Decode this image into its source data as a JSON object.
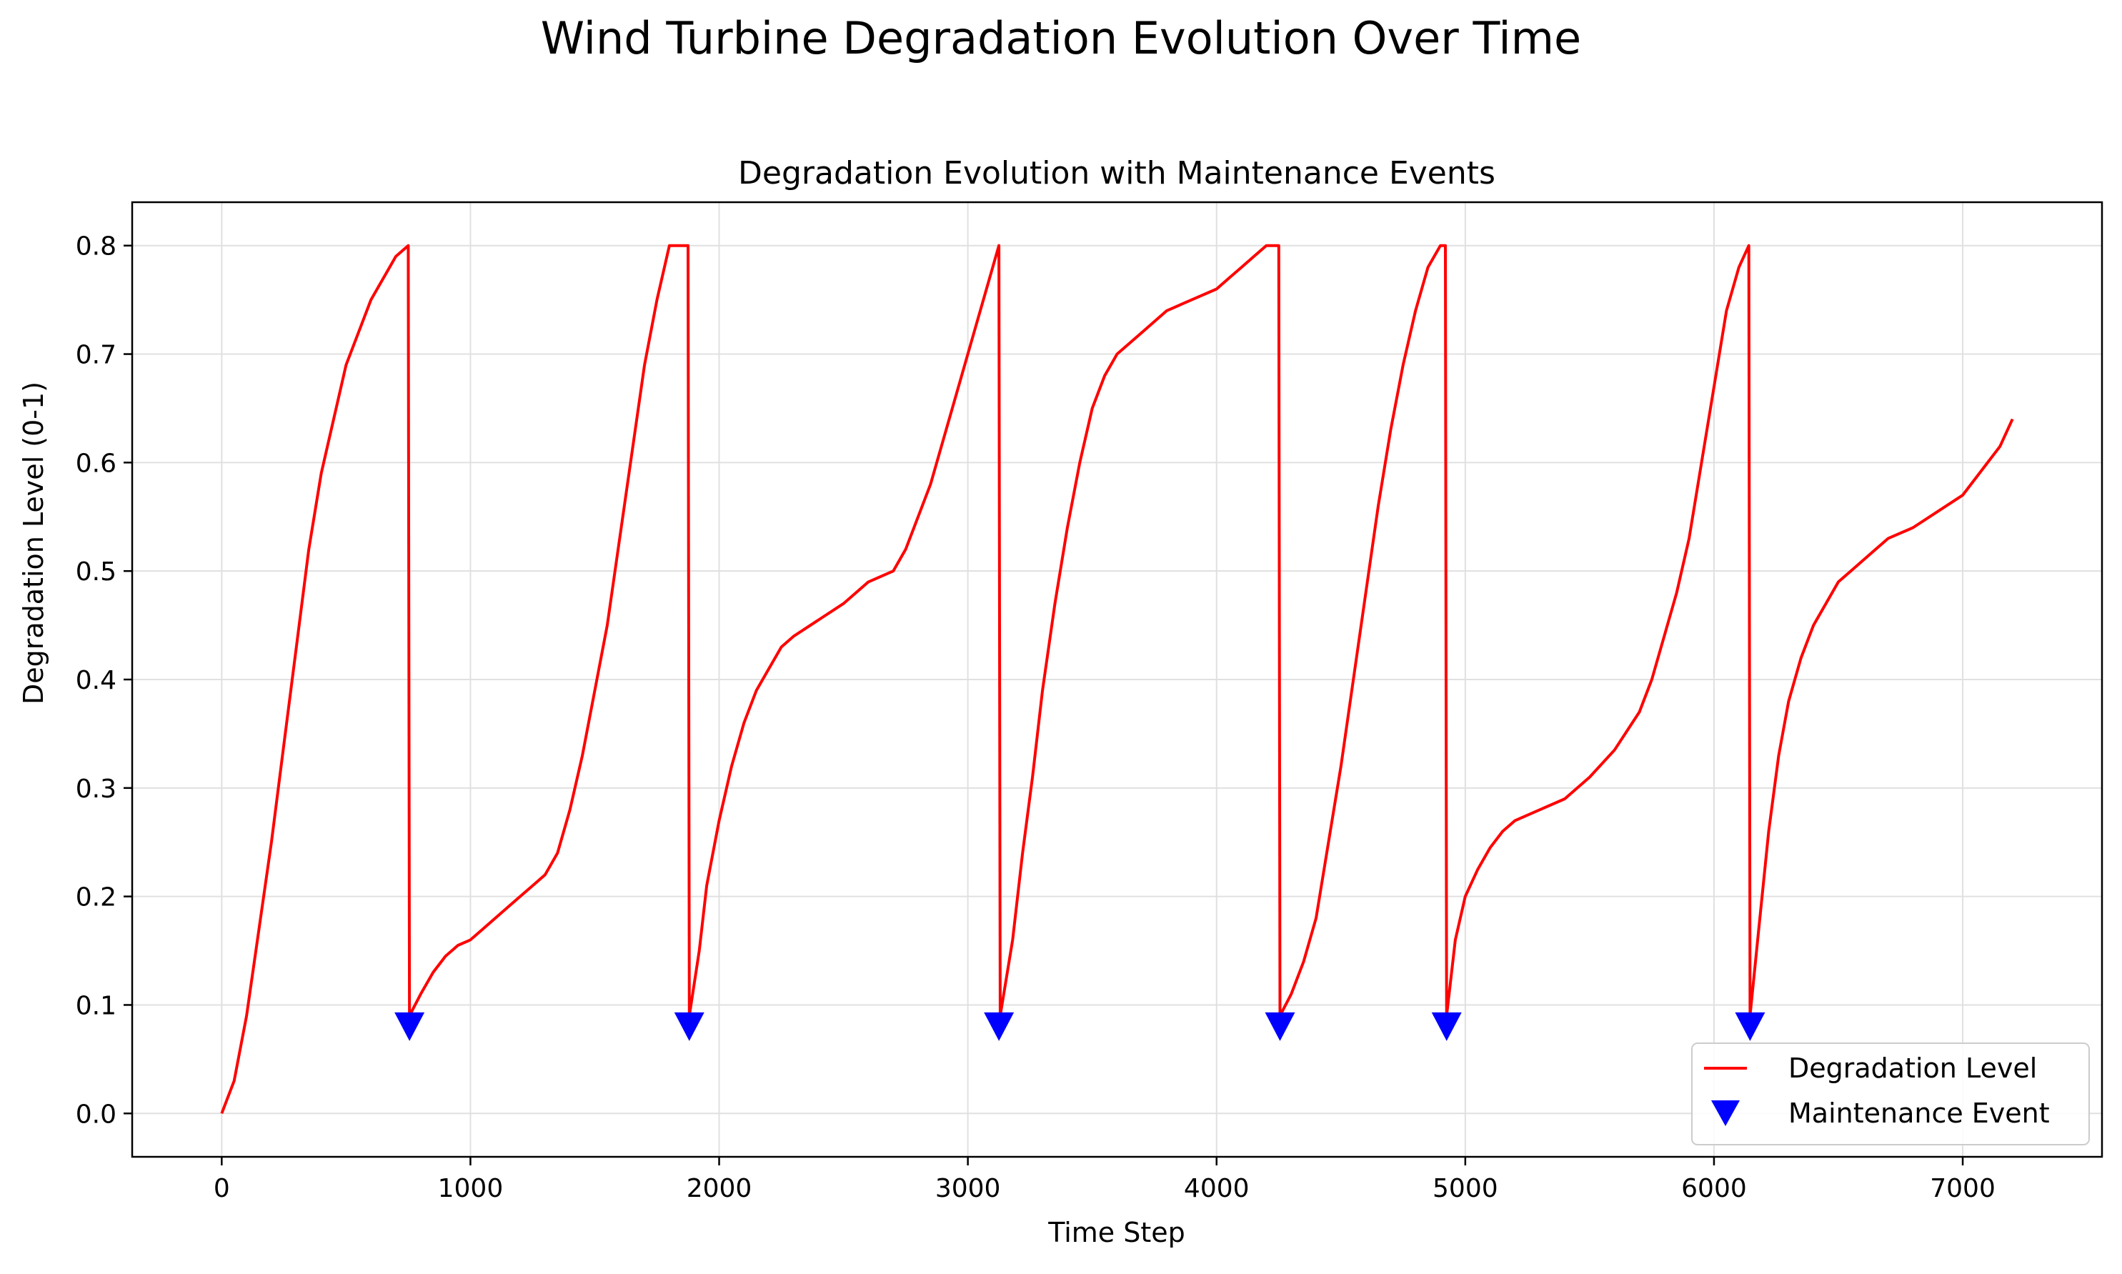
{
  "figure": {
    "suptitle": "Wind Turbine Degradation Evolution Over Time"
  },
  "chart_data": {
    "type": "line",
    "title": "Degradation Evolution with Maintenance Events",
    "xlabel": "Time Step",
    "ylabel": "Degradation Level (0-1)",
    "xlim": [
      -360,
      7560
    ],
    "ylim": [
      -0.04,
      0.84
    ],
    "xticks": [
      0,
      1000,
      2000,
      3000,
      4000,
      5000,
      6000,
      7000
    ],
    "xtick_labels": [
      "0",
      "1000",
      "2000",
      "3000",
      "4000",
      "5000",
      "6000",
      "7000"
    ],
    "yticks": [
      0.0,
      0.1,
      0.2,
      0.3,
      0.4,
      0.5,
      0.6,
      0.7,
      0.8
    ],
    "ytick_labels": [
      "0.0",
      "0.1",
      "0.2",
      "0.3",
      "0.4",
      "0.5",
      "0.6",
      "0.7",
      "0.8"
    ],
    "grid": true,
    "legend_position": "lower-right",
    "colors": {
      "degradation": "#ff0000",
      "maintenance": "#0000ff",
      "grid": "#e0e0e0"
    },
    "series": [
      {
        "name": "Degradation Level",
        "kind": "line",
        "x": [
          0,
          50,
          100,
          150,
          200,
          250,
          300,
          350,
          400,
          450,
          500,
          550,
          600,
          650,
          700,
          750,
          755,
          800,
          850,
          900,
          950,
          1000,
          1050,
          1100,
          1150,
          1200,
          1250,
          1300,
          1350,
          1400,
          1450,
          1500,
          1550,
          1600,
          1650,
          1700,
          1750,
          1800,
          1850,
          1875,
          1880,
          1920,
          1950,
          2000,
          2050,
          2100,
          2150,
          2200,
          2250,
          2300,
          2400,
          2500,
          2600,
          2700,
          2750,
          2800,
          2850,
          2900,
          2950,
          3000,
          3050,
          3100,
          3125,
          3130,
          3180,
          3220,
          3260,
          3300,
          3350,
          3400,
          3450,
          3500,
          3550,
          3600,
          3650,
          3700,
          3750,
          3800,
          3900,
          4000,
          4050,
          4100,
          4150,
          4200,
          4250,
          4255,
          4300,
          4350,
          4400,
          4450,
          4500,
          4550,
          4600,
          4650,
          4700,
          4750,
          4800,
          4850,
          4900,
          4920,
          4925,
          4960,
          5000,
          5050,
          5100,
          5150,
          5200,
          5250,
          5300,
          5400,
          5500,
          5600,
          5700,
          5750,
          5800,
          5850,
          5900,
          5950,
          6000,
          6050,
          6100,
          6140,
          6145,
          6180,
          6220,
          6260,
          6300,
          6350,
          6400,
          6450,
          6500,
          6550,
          6600,
          6650,
          6700,
          6800,
          6900,
          7000,
          7100,
          7150,
          7200
        ],
        "y": [
          0.0,
          0.03,
          0.09,
          0.17,
          0.25,
          0.34,
          0.43,
          0.52,
          0.59,
          0.64,
          0.69,
          0.72,
          0.75,
          0.77,
          0.79,
          0.8,
          0.09,
          0.11,
          0.13,
          0.145,
          0.155,
          0.16,
          0.17,
          0.18,
          0.19,
          0.2,
          0.21,
          0.22,
          0.24,
          0.28,
          0.33,
          0.39,
          0.45,
          0.53,
          0.61,
          0.69,
          0.75,
          0.8,
          0.8,
          0.8,
          0.09,
          0.15,
          0.21,
          0.27,
          0.32,
          0.36,
          0.39,
          0.41,
          0.43,
          0.44,
          0.455,
          0.47,
          0.49,
          0.5,
          0.52,
          0.55,
          0.58,
          0.62,
          0.66,
          0.7,
          0.74,
          0.78,
          0.8,
          0.09,
          0.16,
          0.24,
          0.31,
          0.39,
          0.47,
          0.54,
          0.6,
          0.65,
          0.68,
          0.7,
          0.71,
          0.72,
          0.73,
          0.74,
          0.75,
          0.76,
          0.77,
          0.78,
          0.79,
          0.8,
          0.8,
          0.09,
          0.11,
          0.14,
          0.18,
          0.25,
          0.32,
          0.4,
          0.48,
          0.56,
          0.63,
          0.69,
          0.74,
          0.78,
          0.8,
          0.8,
          0.09,
          0.16,
          0.2,
          0.225,
          0.245,
          0.26,
          0.27,
          0.275,
          0.28,
          0.29,
          0.31,
          0.335,
          0.37,
          0.4,
          0.44,
          0.48,
          0.53,
          0.6,
          0.67,
          0.74,
          0.78,
          0.8,
          0.09,
          0.17,
          0.26,
          0.33,
          0.38,
          0.42,
          0.45,
          0.47,
          0.49,
          0.5,
          0.51,
          0.52,
          0.53,
          0.54,
          0.555,
          0.57,
          0.6,
          0.615,
          0.64
        ]
      },
      {
        "name": "Maintenance Event",
        "kind": "marker",
        "marker": "triangle-down",
        "x": [
          755,
          1880,
          3125,
          4255,
          4925,
          6145
        ],
        "y": [
          0.08,
          0.08,
          0.08,
          0.08,
          0.08,
          0.08
        ]
      }
    ]
  }
}
